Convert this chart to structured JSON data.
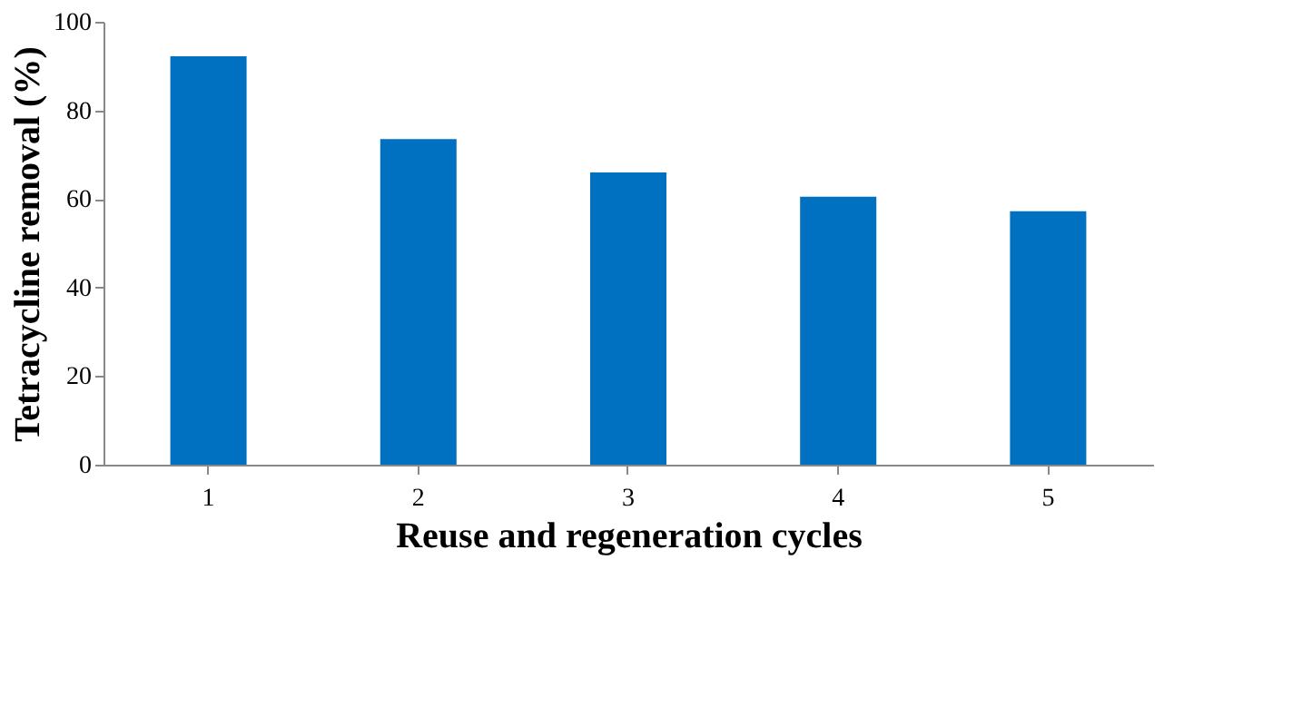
{
  "chart_data": {
    "type": "bar",
    "xlabel": "Reuse and regeneration cycles",
    "ylabel": "Tetracycline removal (%)",
    "categories": [
      "1",
      "2",
      "3",
      "4",
      "5"
    ],
    "values": [
      92.2,
      73.5,
      66,
      60.5,
      57.2
    ],
    "color": "#0070c0",
    "ylim": [
      0,
      100
    ],
    "yticks": [
      0,
      20,
      40,
      60,
      80,
      100
    ],
    "grid": false
  }
}
